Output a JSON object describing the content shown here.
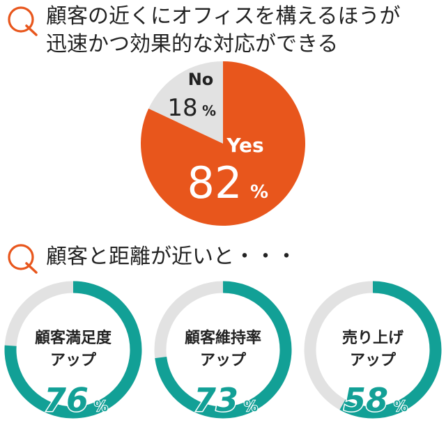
{
  "questions": [
    {
      "mark": "Q",
      "text_lines": [
        "顧客の近くにオフィスを構えるほうが",
        "迅速かつ効果的な対応ができる"
      ]
    },
    {
      "mark": "Q",
      "text": "顧客と距離が近いと・・・"
    }
  ],
  "colors": {
    "accent_orange": "#E8561C",
    "no_gray": "#E2E2E2",
    "teal": "#12A096",
    "track_gray": "#E2E2E2",
    "text": "#222222"
  },
  "chart_data": [
    {
      "type": "pie",
      "title": "顧客の近くにオフィスを構えるほうが迅速かつ効果的な対応ができる",
      "slices": [
        {
          "label": "Yes",
          "value": 82,
          "display": "82",
          "unit": "%",
          "color": "#E8561C"
        },
        {
          "label": "No",
          "value": 18,
          "display": "18",
          "unit": "%",
          "color": "#E2E2E2"
        }
      ]
    },
    {
      "type": "donut",
      "title": "顧客と距離が近いと・・・",
      "items": [
        {
          "label_lines": [
            "顧客満足度",
            "アップ"
          ],
          "value": 76,
          "display": "76",
          "unit": "%"
        },
        {
          "label_lines": [
            "顧客維持率",
            "アップ"
          ],
          "value": 73,
          "display": "73",
          "unit": "%"
        },
        {
          "label_lines": [
            "売り上げ",
            "アップ"
          ],
          "value": 58,
          "display": "58",
          "unit": "%"
        }
      ]
    }
  ]
}
